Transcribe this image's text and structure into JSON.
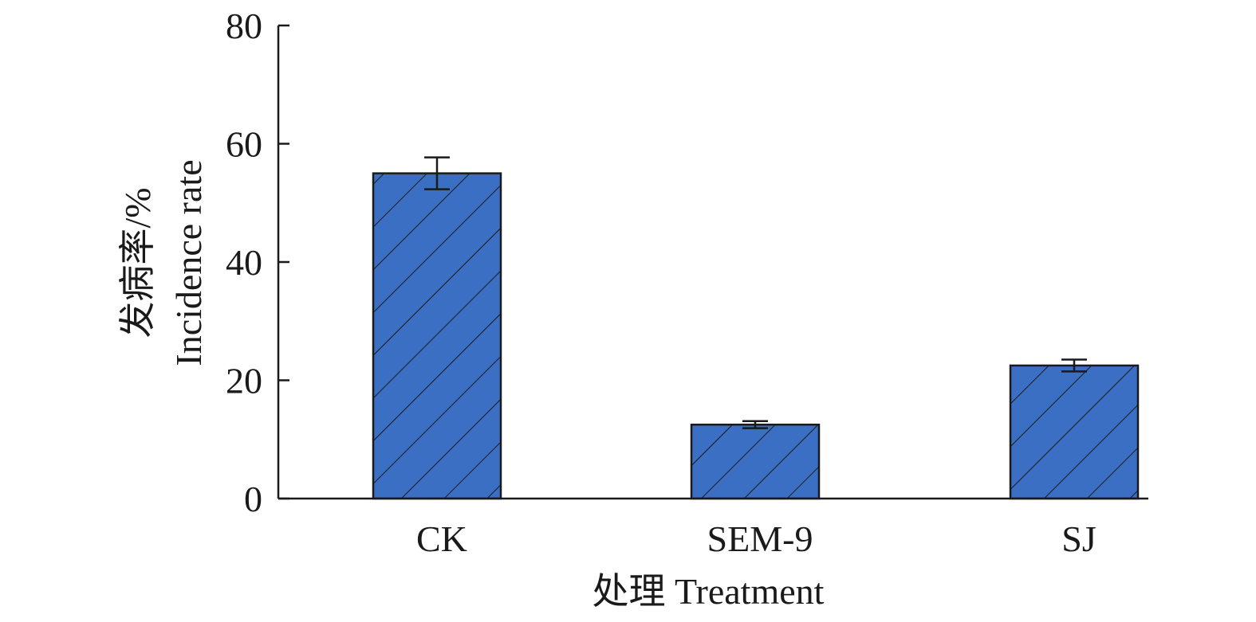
{
  "chart_data": {
    "type": "bar",
    "categories": [
      "CK",
      "SEM-9",
      "SJ"
    ],
    "values": [
      55,
      12.5,
      22.5
    ],
    "errors": [
      2.7,
      0.6,
      1.0
    ],
    "ylim": [
      0,
      80
    ],
    "yticks": [
      "0",
      "20",
      "40",
      "60",
      "80"
    ],
    "ylabel_cn": "发病率/%",
    "ylabel_en": "Incidence rate",
    "xlabel": "处理 Treatment",
    "bar_color": "#3a6fc4",
    "bar_pattern": "diagonal-hatch",
    "grid": false
  }
}
